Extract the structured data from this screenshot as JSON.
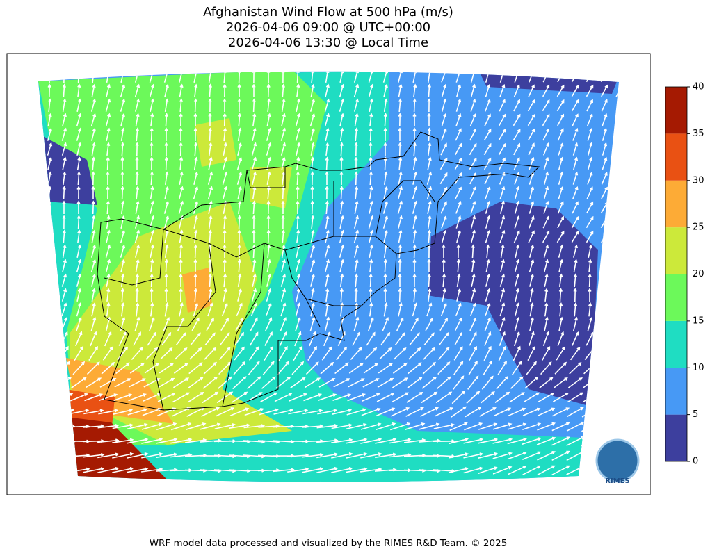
{
  "title": [
    "Afghanistan Wind Flow at 500 hPa (m/s)",
    "2026-04-06 09:00 @ UTC+00:00",
    "2026-04-06 13:30 @ Local Time"
  ],
  "colorbar": {
    "ticks": [
      0,
      5,
      10,
      15,
      20,
      25,
      30,
      35,
      40
    ],
    "colors": [
      "#3d3f9e",
      "#4799f5",
      "#1fddc2",
      "#6cf95a",
      "#cce93a",
      "#fdab36",
      "#e95113",
      "#a51a02"
    ]
  },
  "logo": "RIMES",
  "footer": "WRF model data processed and visualized by the RIMES R&D Team. © 2025"
}
